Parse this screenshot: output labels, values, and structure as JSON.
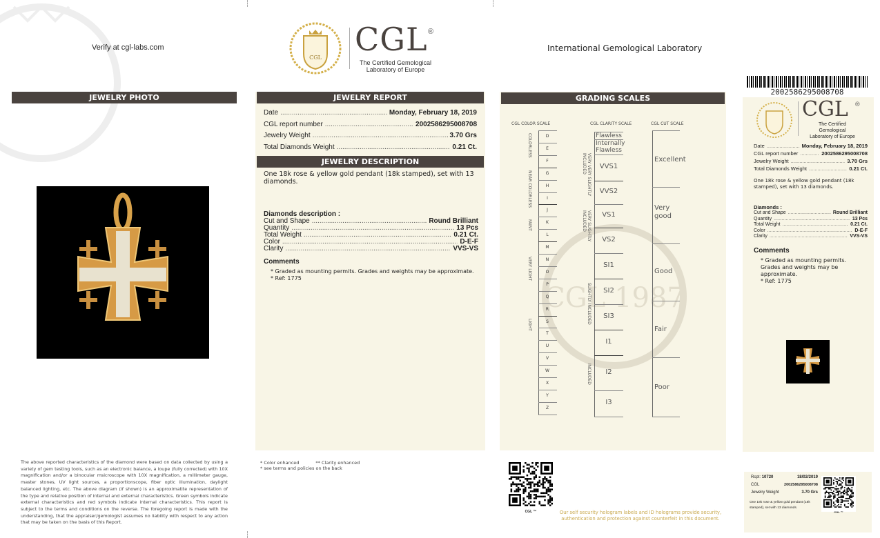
{
  "header": {
    "verify": "Verify at cgl-labs.com",
    "lab_name": "International Gemological Laboratory",
    "logo": {
      "brand": "CGL",
      "registered": "®",
      "tagline1": "The Certified Gemological",
      "tagline2": "Laboratory of Europe",
      "seal": "CGL 1987"
    }
  },
  "photo": {
    "title": "JEWELRY PHOTO"
  },
  "report": {
    "title": "JEWELRY REPORT",
    "fields": [
      {
        "label": "Date",
        "value": "Monday, February 18, 2019"
      },
      {
        "label": "CGL report number",
        "value": "2002586295008708"
      },
      {
        "label": "Jewelry Weight",
        "value": "3.70 Grs"
      },
      {
        "label": "Total Diamonds Weight",
        "value": "0.21 Ct."
      }
    ]
  },
  "description": {
    "title": "JEWELRY DESCRIPTION",
    "text": "One 18k rose & yellow gold pendant (18k stamped), set with 13 diamonds.",
    "diamonds_title": "Diamonds description :",
    "diamonds": [
      {
        "label": "Cut and Shape",
        "value": "Round Brilliant"
      },
      {
        "label": "Quantity",
        "value": "13 Pcs"
      },
      {
        "label": "Total Weight",
        "value": "0.21 Ct."
      },
      {
        "label": "Color",
        "value": "D-E-F"
      },
      {
        "label": "Clarity",
        "value": "VVS-VS"
      }
    ],
    "comments_title": "Comments",
    "comments": [
      "* Graded as mounting permits. Grades and weights may be approximate.",
      "* Ref: 1775"
    ]
  },
  "grading": {
    "title": "GRADING SCALES",
    "color_title": "CGL COLOR SCALE",
    "clarity_title": "CGL CLARITY SCALE",
    "cut_title": "CGL CUT SCALE",
    "colors": [
      "D",
      "E",
      "F",
      "G",
      "H",
      "I",
      "J",
      "K",
      "L",
      "M",
      "N",
      "O",
      "P",
      "Q",
      "R",
      "S",
      "T",
      "U",
      "V",
      "W",
      "X",
      "Y",
      "Z"
    ],
    "color_groups": [
      "COLORLESS",
      "NEAR COLORLESS",
      "FAINT",
      "VERY LIGHT",
      "LIGHT"
    ],
    "clarity": [
      "Flawless",
      "Internally Flawless",
      "VVS1",
      "VVS2",
      "VS1",
      "VS2",
      "SI1",
      "SI2",
      "SI3",
      "I1",
      "I2",
      "I3"
    ],
    "clarity_groups": [
      "VERY VERY SLIGHTLY INCLUDED",
      "VERY SLIGHTLY INCLUDED",
      "SLIGHTLY INCLUDED",
      "INCLUDED"
    ],
    "cut": [
      "Excellent",
      "Very good",
      "Good",
      "Fair",
      "Poor"
    ],
    "watermark": "CGL 1987"
  },
  "footer": {
    "disclaimer": "The above reported characteristics of the diamond were based on data collected by using a variety of gem testing tools, such as an electronic balance, a loupe (fully corrected) with 10X magnification and/or a binocular msicroscope with 10X magnification, a millimeter gauge, master stones, UV light sources, a proportionscope, fiber optic illumination, daylight balanced lighting, etc. The above diagram (if shown) is an approximatite representation of the type and relative position of internal and external characteristics. Green symbols indicate external characteristics and red symbols indicate internal characteristics. This report is subject to the terms and conditions on the reverse. The foregoing report is made with the understanding, that the appraiser/gemologist assumes no liability with respect to any action that may be taken on the basis of this Report.",
    "color_enhanced": "* Color enhanced",
    "clarity_enhanced": "** Clarity enhanced",
    "terms": "* see terms and policies on the back",
    "qr_label": "CGL ™",
    "hologram": "Our self security hologram labels and ID holograms provide security, authentication and protection against counterfeit in this document.",
    "hologram_color": "#c9a94e"
  },
  "slip": {
    "barcode": "2002586295008708",
    "fields": [
      {
        "label": "Date",
        "value": "Monday, February 18, 2019"
      },
      {
        "label": "CGL report number",
        "value": "2002586295008708"
      },
      {
        "label": "Jewelry Weight",
        "value": "3.70 Grs"
      },
      {
        "label": "Total Diamonds Weight",
        "value": "0.21 Ct."
      }
    ],
    "text": "One 18k rose & yellow gold pendant (18k stamped), set with 13 diamonds.",
    "diamonds_title": "Diamonds :",
    "diamonds": [
      {
        "label": "Cut and Shape",
        "value": "Round Brilliant"
      },
      {
        "label": "Quantity",
        "value": "13 Pcs"
      },
      {
        "label": "Total Weight",
        "value": "0.21 Ct."
      },
      {
        "label": "Color",
        "value": "D-E-F"
      },
      {
        "label": "Clarity",
        "value": "VVS-VS"
      }
    ],
    "comments_title": "Comments",
    "comments": [
      "* Graded as mounting permits. Grades and weights may be approximate.",
      "* Ref: 1775"
    ]
  },
  "stub": {
    "rcpt_label": "Rcpt:",
    "rcpt": "10720",
    "date": "18/02/2019",
    "cgl_label": "CGL",
    "cgl": "2002586295008708",
    "weight_label": "Jewelry Weight",
    "weight": "3.70 Grs",
    "text": "One 18k rose & yellow gold pendant (18k stamped), set with 13 diamonds.",
    "qr_label": "CGL ™"
  }
}
